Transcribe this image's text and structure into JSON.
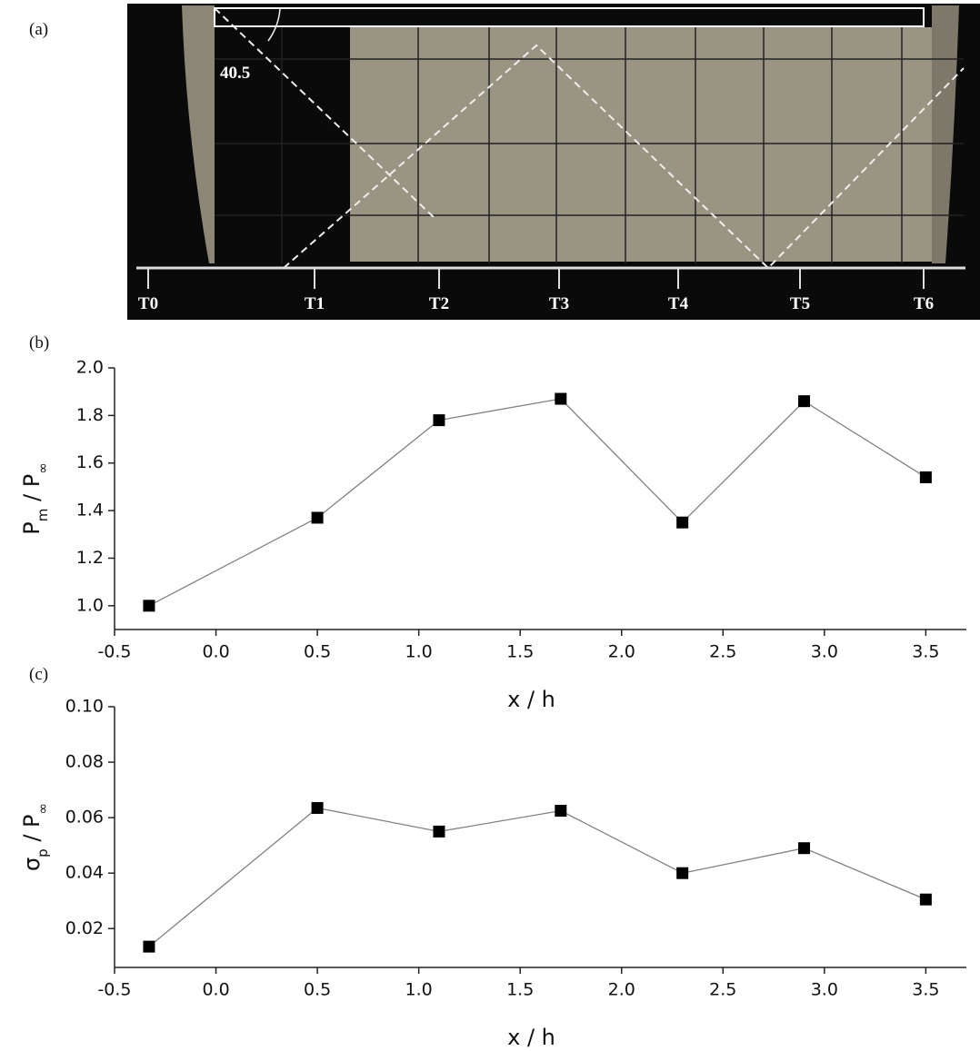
{
  "figure": {
    "panel_labels": [
      "(a)",
      "(b)",
      "(c)"
    ],
    "photo": {
      "angle_label": "40.5",
      "tap_labels": [
        "T0",
        "T1",
        "T2",
        "T3",
        "T4",
        "T5",
        "T6"
      ]
    }
  },
  "chart_data": [
    {
      "type": "line",
      "marker": "square",
      "color": "#000000",
      "line_color": "#808080",
      "xlabel": "x / h",
      "ylabel": [
        "P",
        "m",
        " / P",
        "∞"
      ],
      "x": [
        -0.33,
        0.5,
        1.1,
        1.7,
        2.3,
        2.9,
        3.5
      ],
      "values": [
        1.0,
        1.37,
        1.78,
        1.87,
        1.35,
        1.86,
        1.54
      ],
      "xlim": [
        -0.5,
        3.7
      ],
      "xticks": [
        -0.5,
        {
          "value": 0,
          "label": "0.0"
        },
        0.5,
        {
          "value": 1,
          "label": "1.0"
        },
        1.5,
        {
          "value": 2,
          "label": "2.0"
        },
        2.5,
        {
          "value": 3,
          "label": "3.0"
        },
        3.5
      ],
      "ylim": [
        0.9,
        2.0
      ],
      "yticks": [
        {
          "value": 1,
          "label": "1.0"
        },
        1.2,
        1.4,
        1.6,
        1.8,
        {
          "value": 2,
          "label": "2.0"
        }
      ],
      "grid": false
    },
    {
      "type": "line",
      "marker": "square",
      "color": "#000000",
      "line_color": "#808080",
      "xlabel": "x / h",
      "ylabel": [
        "σ",
        "p",
        " / P",
        "∞"
      ],
      "x": [
        -0.33,
        0.5,
        1.1,
        1.7,
        2.3,
        2.9,
        3.5
      ],
      "values": [
        0.0135,
        0.0635,
        0.055,
        0.0625,
        0.04,
        0.049,
        0.0305
      ],
      "xlim": [
        -0.5,
        3.7
      ],
      "xticks": [
        -0.5,
        {
          "value": 0,
          "label": "0.0"
        },
        0.5,
        {
          "value": 1,
          "label": "1.0"
        },
        1.5,
        {
          "value": 2,
          "label": "2.0"
        },
        2.5,
        {
          "value": 3,
          "label": "3.0"
        },
        3.5
      ],
      "ylim": [
        0.006,
        0.1
      ],
      "yticks": [
        0.02,
        0.04,
        0.06,
        0.08,
        {
          "value": 0.1,
          "label": "0.10"
        }
      ],
      "grid": false
    }
  ]
}
